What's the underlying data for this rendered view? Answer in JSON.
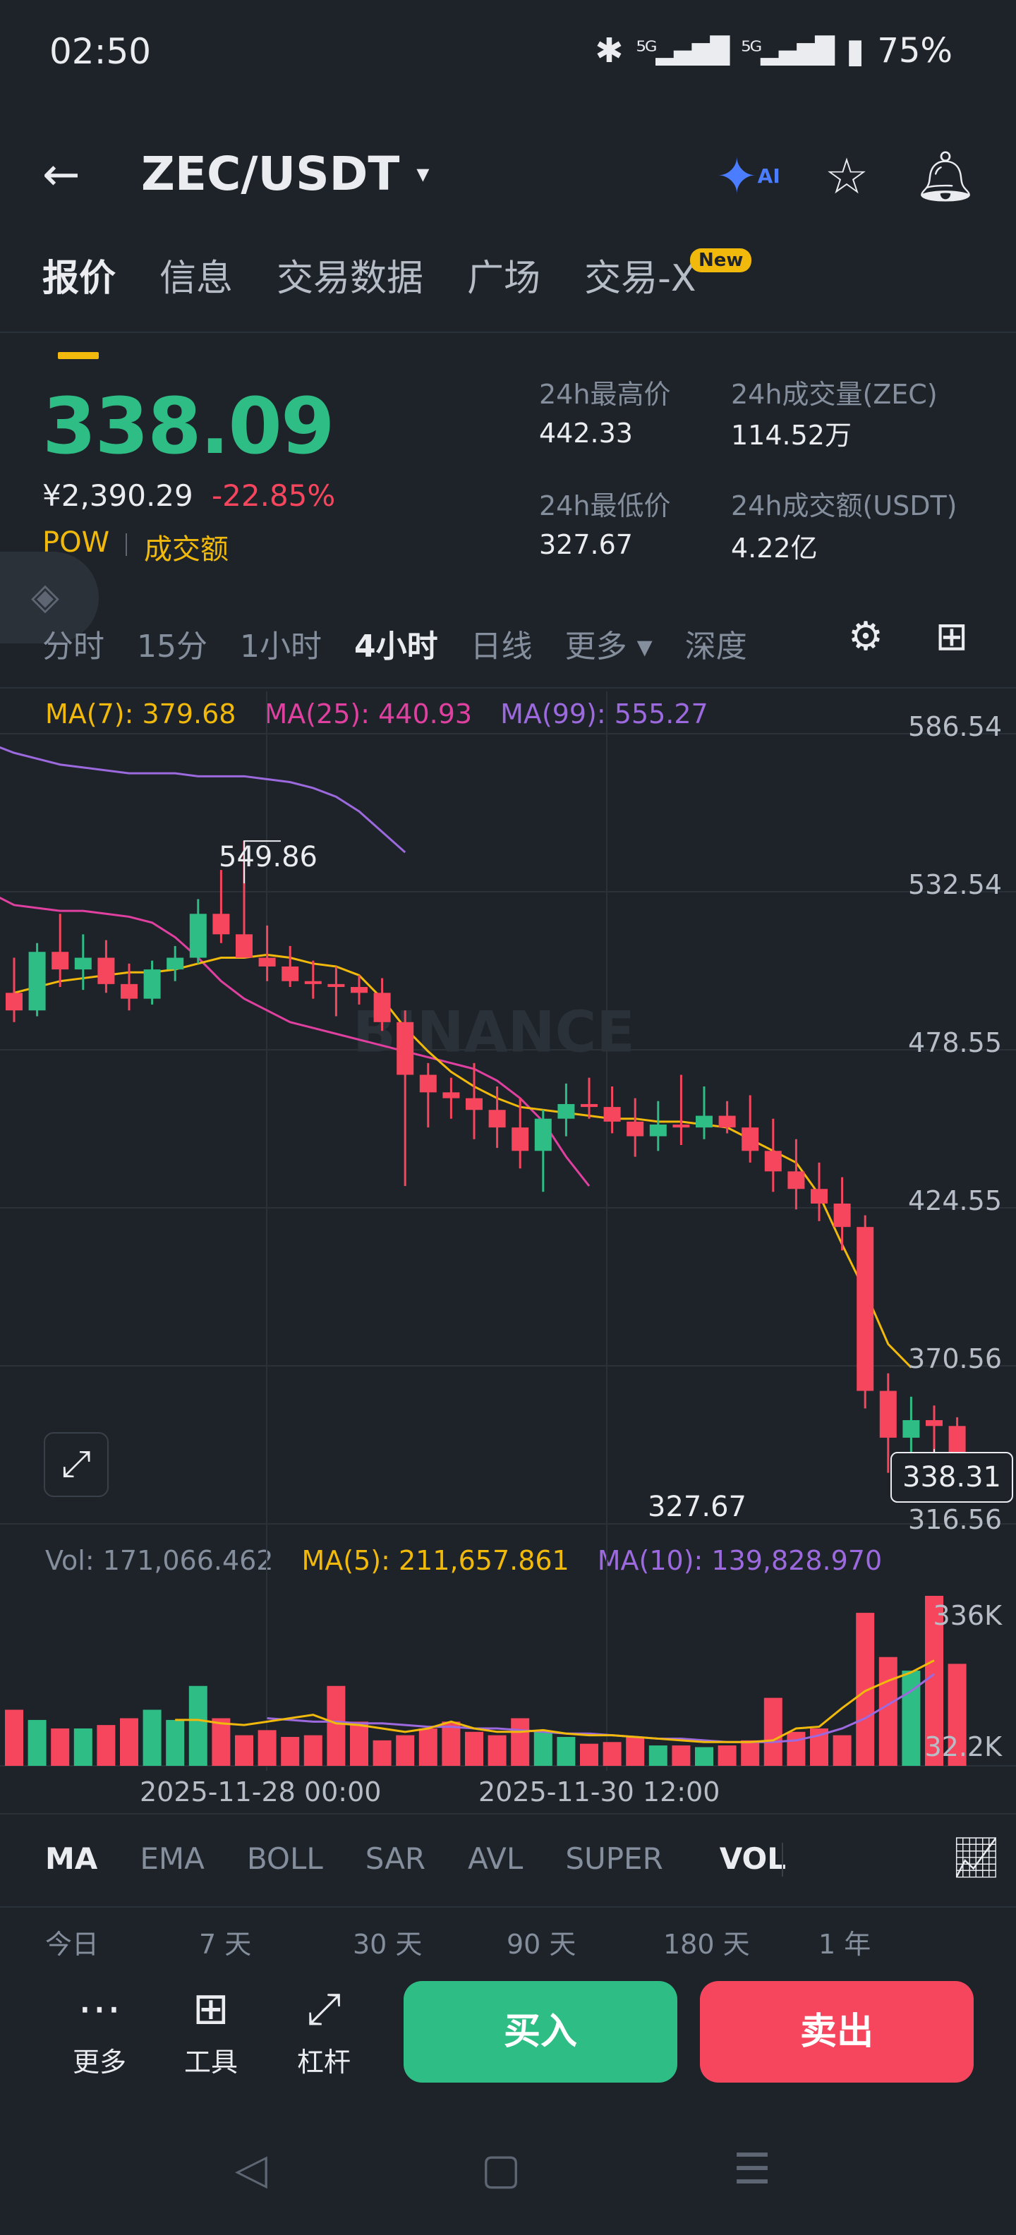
{
  "status": {
    "time": "02:50",
    "bt": "✱",
    "sig1": "⁵ᴳ▂▄▆█",
    "sig2": "⁵ᴳ▂▄▆█",
    "battery": "75%"
  },
  "header": {
    "pair": "ZEC/USDT",
    "caret": "▾"
  },
  "tabs": [
    {
      "label": "报价"
    },
    {
      "label": "信息"
    },
    {
      "label": "交易数据"
    },
    {
      "label": "广场"
    },
    {
      "label": "交易-X"
    }
  ],
  "new_badge": "New",
  "price": {
    "last": "338.09",
    "cny": "¥2,390.29",
    "change": "-22.85%",
    "tag1": "POW",
    "tag2": "成交额"
  },
  "stats": {
    "high_label": "24h最高价",
    "high_value": "442.33",
    "low_label": "24h最低价",
    "low_value": "327.67",
    "vol_label": "24h成交量(ZEC)",
    "vol_value": "114.52万",
    "amt_label": "24h成交额(USDT)",
    "amt_value": "4.22亿"
  },
  "intervals": [
    "分时",
    "15分",
    "1小时",
    "4小时",
    "日线",
    "更多 ▾",
    "深度"
  ],
  "active_interval": "4小时",
  "ma_legend": {
    "ma7": "MA(7): 379.68",
    "ma25": "MA(25): 440.93",
    "ma99": "MA(99): 555.27"
  },
  "vol_legend": {
    "vol": "Vol: 171,066.462",
    "ma5": "MA(5): 211,657.861",
    "ma10": "MA(10): 139,828.970"
  },
  "colors": {
    "up": "#2ebd85",
    "down": "#f6465d",
    "ma7": "#f0b90b",
    "ma25": "#e040a0",
    "ma99": "#9c6ade",
    "accent": "#f0b90b"
  },
  "chart_data": {
    "type": "candlestick",
    "interval": "4小时",
    "y_ticks": [
      "586.54",
      "532.54",
      "478.55",
      "424.55",
      "370.56",
      "316.56"
    ],
    "ylim": [
      316.56,
      586.54
    ],
    "x_ticks": [
      "2025-11-28 00:00",
      "2025-11-30 12:00"
    ],
    "high_annotation": "549.86",
    "low_annotation": "327.67",
    "last_price_tag": "338.31",
    "watermark": "BINANCE",
    "candles": [
      [
        498,
        510,
        488,
        492
      ],
      [
        492,
        515,
        490,
        512
      ],
      [
        512,
        525,
        500,
        506
      ],
      [
        506,
        518,
        499,
        510
      ],
      [
        510,
        516,
        498,
        501
      ],
      [
        501,
        508,
        492,
        496
      ],
      [
        496,
        509,
        494,
        506
      ],
      [
        506,
        514,
        502,
        510
      ],
      [
        510,
        530,
        508,
        525
      ],
      [
        525,
        540,
        515,
        518
      ],
      [
        518,
        549.86,
        510,
        510
      ],
      [
        510,
        521,
        502,
        507
      ],
      [
        507,
        514,
        500,
        502
      ],
      [
        502,
        509,
        496,
        501
      ],
      [
        501,
        507,
        490,
        500
      ],
      [
        500,
        504,
        494,
        498
      ],
      [
        498,
        503,
        485,
        488
      ],
      [
        488,
        492,
        432,
        470
      ],
      [
        470,
        474,
        452,
        464
      ],
      [
        464,
        469,
        455,
        462
      ],
      [
        462,
        474,
        448,
        458
      ],
      [
        458,
        466,
        445,
        452
      ],
      [
        452,
        462,
        438,
        444
      ],
      [
        444,
        458,
        430,
        455
      ],
      [
        455,
        467,
        449,
        460
      ],
      [
        460,
        469,
        455,
        459
      ],
      [
        459,
        466,
        450,
        454
      ],
      [
        454,
        462,
        442,
        449
      ],
      [
        449,
        461,
        444,
        453
      ],
      [
        453,
        470,
        446,
        452
      ],
      [
        452,
        466,
        448,
        456
      ],
      [
        456,
        461,
        450,
        452
      ],
      [
        452,
        463,
        440,
        444
      ],
      [
        444,
        455,
        430,
        437
      ],
      [
        437,
        448,
        424,
        431
      ],
      [
        431,
        440,
        420,
        426
      ],
      [
        426,
        435,
        410,
        418
      ],
      [
        418,
        422,
        356,
        362
      ],
      [
        362,
        368,
        334,
        346
      ],
      [
        346,
        360,
        341,
        352
      ],
      [
        352,
        357,
        327.67,
        350
      ],
      [
        350,
        353,
        330,
        338.31
      ]
    ],
    "ma7": [
      498,
      500,
      502,
      503,
      504,
      505,
      505,
      506,
      508,
      510,
      510,
      511,
      510,
      508,
      507,
      504,
      496,
      486,
      478,
      471,
      466,
      462,
      459,
      458,
      457,
      456,
      455,
      455,
      454,
      454,
      453,
      452,
      448,
      444,
      440,
      429,
      412,
      396,
      378,
      370
    ],
    "ma25": [
      532,
      528,
      527,
      526,
      526,
      525,
      524,
      522,
      517,
      510,
      502,
      496,
      492,
      488,
      486,
      484,
      482,
      480,
      478,
      476,
      474,
      472,
      468,
      462,
      454,
      442,
      432
    ],
    "ma99": [
      583,
      580,
      578,
      576,
      575,
      574,
      573,
      573,
      573,
      572,
      572,
      572,
      571,
      570,
      568,
      565,
      560,
      553,
      546
    ],
    "volume": {
      "y_ticks": [
        "336K",
        "32.2K"
      ],
      "bars": [
        0.33,
        0.27,
        0.22,
        0.22,
        0.24,
        0.28,
        0.33,
        0.27,
        0.47,
        0.28,
        0.18,
        0.21,
        0.17,
        0.18,
        0.47,
        0.26,
        0.15,
        0.18,
        0.22,
        0.26,
        0.2,
        0.18,
        0.28,
        0.2,
        0.17,
        0.13,
        0.14,
        0.17,
        0.12,
        0.12,
        0.11,
        0.12,
        0.15,
        0.4,
        0.2,
        0.22,
        0.18,
        0.9,
        0.64,
        0.56,
        1.0,
        0.6
      ],
      "ma5": [
        0.27,
        0.27,
        0.25,
        0.24,
        0.26,
        0.28,
        0.3,
        0.25,
        0.24,
        0.22,
        0.2,
        0.22,
        0.26,
        0.22,
        0.2,
        0.2,
        0.21,
        0.19,
        0.18,
        0.18,
        0.17,
        0.16,
        0.15,
        0.14,
        0.14,
        0.14,
        0.15,
        0.22,
        0.23,
        0.34,
        0.44,
        0.5,
        0.55,
        0.62
      ],
      "ma10": [
        0.28,
        0.27,
        0.26,
        0.26,
        0.25,
        0.25,
        0.24,
        0.23,
        0.23,
        0.22,
        0.22,
        0.21,
        0.2,
        0.19,
        0.19,
        0.18,
        0.17,
        0.16,
        0.16,
        0.15,
        0.14,
        0.14,
        0.14,
        0.15,
        0.18,
        0.22,
        0.28,
        0.36,
        0.44,
        0.54
      ]
    }
  },
  "indicators": [
    "MA",
    "EMA",
    "BOLL",
    "SAR",
    "AVL",
    "SUPER",
    "VOL"
  ],
  "periods": [
    "今日",
    "7 天",
    "30 天",
    "90 天",
    "180 天",
    "1 年"
  ],
  "actions": [
    {
      "label": "更多",
      "icon": "⋯"
    },
    {
      "label": "工具",
      "icon": "⊞"
    },
    {
      "label": "杠杆",
      "icon": "⤢"
    }
  ],
  "buy_label": "买入",
  "sell_label": "卖出"
}
